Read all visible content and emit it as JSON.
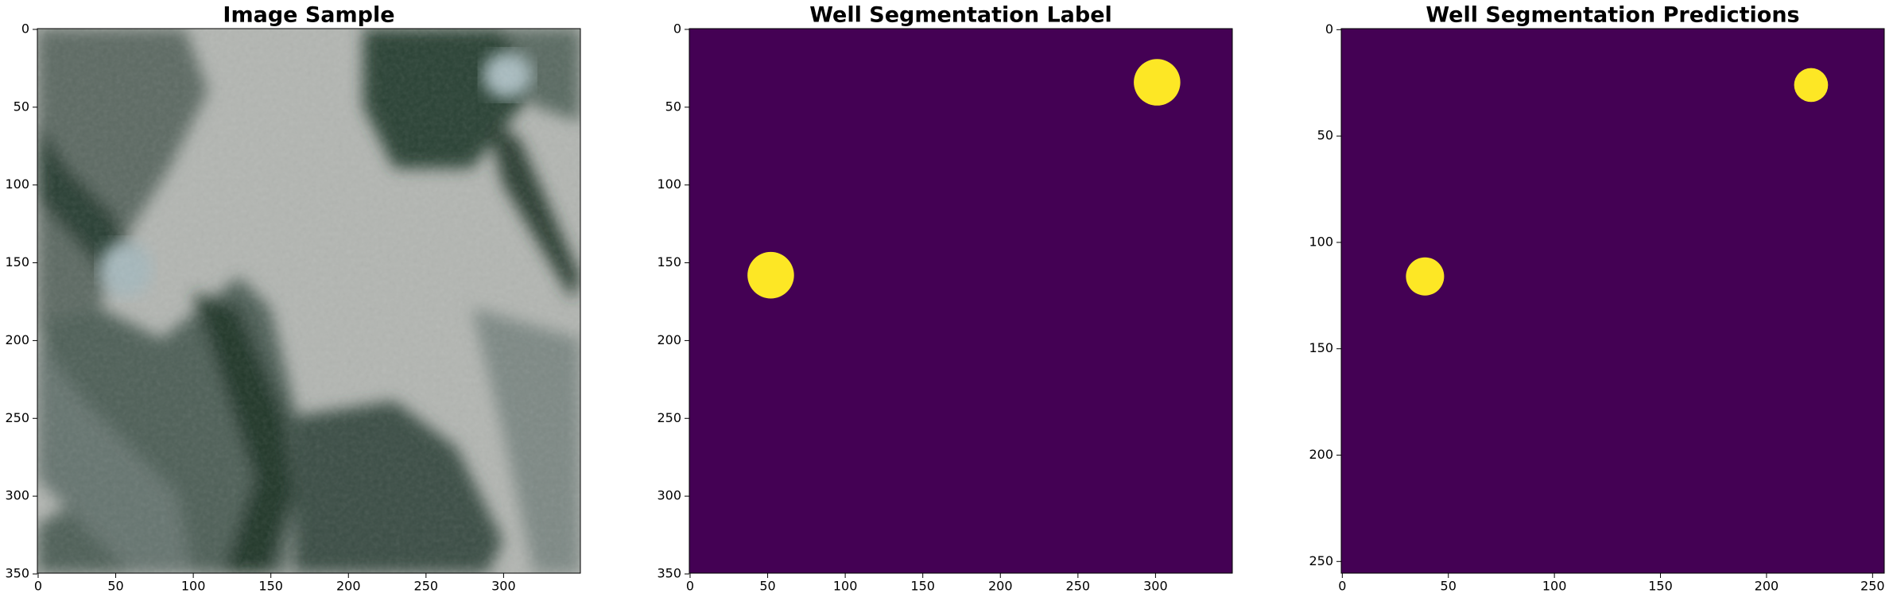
{
  "chart_data": [
    {
      "type": "image",
      "title": "Image Sample",
      "xlim": [
        -0.5,
        349.5
      ],
      "ylim": [
        349.5,
        -0.5
      ],
      "xticks": [
        0,
        50,
        100,
        150,
        200,
        250,
        300
      ],
      "yticks": [
        0,
        50,
        100,
        150,
        200,
        250,
        300,
        350
      ]
    },
    {
      "type": "image",
      "title": "Well Segmentation Label",
      "xlim": [
        -0.5,
        349.5
      ],
      "ylim": [
        349.5,
        -0.5
      ],
      "xticks": [
        0,
        50,
        100,
        150,
        200,
        250,
        300
      ],
      "yticks": [
        0,
        50,
        100,
        150,
        200,
        250,
        300,
        350
      ],
      "background": "#440154",
      "color": "#fde725",
      "x": [
        52,
        301
      ],
      "values": [
        158,
        34
      ],
      "radius": [
        15,
        15
      ]
    },
    {
      "type": "image",
      "title": "Well Segmentation Predictions",
      "xlim": [
        -0.5,
        255.5
      ],
      "ylim": [
        255.5,
        -0.5
      ],
      "xticks": [
        0,
        50,
        100,
        150,
        200,
        250
      ],
      "yticks": [
        0,
        50,
        100,
        150,
        200,
        250
      ],
      "background": "#440154",
      "color": "#fde725",
      "x": [
        39,
        221
      ],
      "values": [
        116,
        26
      ],
      "radius": [
        9,
        8
      ]
    }
  ]
}
